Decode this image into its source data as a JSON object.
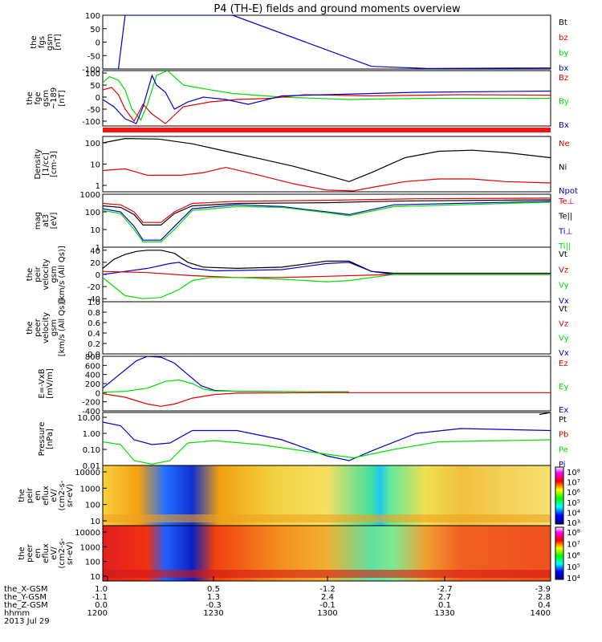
{
  "title": "P4 (TH-E) fields and ground moments overview",
  "colors": {
    "black": "#000000",
    "red": "#e00000",
    "green": "#00dd00",
    "blue": "#0000cc",
    "bar_red": "#ff1010",
    "ion_bg": "#f3e070"
  },
  "chart_data": [
    {
      "type": "line",
      "panel": "fgs",
      "ylabel_lines": [
        "the",
        "fgs",
        "gsm",
        "[nT]"
      ],
      "yticks": [
        "100",
        "50",
        "0",
        "-50",
        "-100"
      ],
      "ylim": [
        -100,
        100
      ],
      "legend": [
        {
          "name": "Bt",
          "color": "black"
        },
        {
          "name": "bz",
          "color": "red"
        },
        {
          "name": "by",
          "color": "green"
        },
        {
          "name": "bx",
          "color": "blue"
        }
      ],
      "series": [
        {
          "name": "bx",
          "color": "blue",
          "x": [
            1200,
            1207,
            1210,
            1258,
            1320,
            1345,
            1400
          ],
          "y": [
            -100,
            -100,
            100,
            100,
            -90,
            -98,
            -96
          ]
        }
      ]
    },
    {
      "type": "line",
      "panel": "fgs-189",
      "ylabel_lines": [
        "the",
        "fge",
        "gsm",
        "~189",
        "[nT]"
      ],
      "yticks": [
        "100",
        "50",
        "0",
        "-50",
        "-100"
      ],
      "ylim": [
        -120,
        110
      ],
      "legend": [
        {
          "name": "Bz",
          "color": "red"
        },
        {
          "name": "By",
          "color": "green"
        },
        {
          "name": "Bx",
          "color": "blue"
        }
      ],
      "series": [
        {
          "name": "By",
          "color": "green",
          "x": [
            1200,
            1203,
            1207,
            1210,
            1213,
            1217,
            1220,
            1224,
            1229,
            1236,
            1245,
            1258,
            1280,
            1310,
            1345,
            1400
          ],
          "y": [
            60,
            85,
            70,
            30,
            -50,
            -95,
            -30,
            90,
            110,
            50,
            35,
            15,
            0,
            -10,
            -5,
            -5
          ]
        },
        {
          "name": "Bz",
          "color": "red",
          "x": [
            1200,
            1204,
            1207,
            1210,
            1214,
            1218,
            1222,
            1228,
            1236,
            1248,
            1260,
            1275,
            1290,
            1320,
            1360,
            1400
          ],
          "y": [
            30,
            40,
            10,
            -50,
            -100,
            -30,
            -70,
            -110,
            -40,
            -20,
            -10,
            -5,
            10,
            5,
            10,
            8
          ]
        },
        {
          "name": "Bx",
          "color": "blue",
          "x": [
            1200,
            1205,
            1210,
            1215,
            1218,
            1222,
            1224,
            1228,
            1232,
            1238,
            1245,
            1255,
            1265,
            1280,
            1300,
            1340,
            1400
          ],
          "y": [
            -10,
            -40,
            -90,
            -110,
            -40,
            90,
            50,
            20,
            -50,
            -20,
            0,
            -10,
            -30,
            5,
            10,
            20,
            25
          ]
        }
      ]
    },
    {
      "type": "line",
      "panel": "density",
      "ylabel_lines": [
        "Density",
        "[1/cc]",
        "[cm-3]"
      ],
      "yticks": [
        "100",
        "10",
        "1"
      ],
      "scale": "log",
      "ylim": [
        0.5,
        200
      ],
      "legend": [
        {
          "name": "Ne",
          "color": "red"
        },
        {
          "name": "Ni",
          "color": "black"
        },
        {
          "name": "Npot",
          "color": "blue"
        }
      ],
      "series": [
        {
          "name": "Ni",
          "color": "black",
          "x": [
            1200,
            1210,
            1225,
            1240,
            1255,
            1270,
            1285,
            1300,
            1310,
            1320,
            1335,
            1350,
            1365,
            1380,
            1400
          ],
          "y": [
            100,
            160,
            150,
            90,
            40,
            18,
            8,
            3,
            1.5,
            4,
            20,
            40,
            45,
            35,
            20
          ]
        },
        {
          "name": "Ne",
          "color": "red",
          "x": [
            1200,
            1210,
            1220,
            1235,
            1245,
            1255,
            1270,
            1285,
            1300,
            1312,
            1320,
            1335,
            1350,
            1365,
            1380,
            1400
          ],
          "y": [
            5,
            6,
            3,
            3,
            4,
            7,
            3,
            1.2,
            0.6,
            0.55,
            0.8,
            1.5,
            2,
            2,
            1.5,
            1.3
          ]
        }
      ]
    },
    {
      "type": "line",
      "panel": "magat3",
      "ylabel_lines": [
        "mag",
        "at3",
        "[eV]"
      ],
      "yticks": [
        "1000",
        "100",
        "10",
        "1"
      ],
      "scale": "log",
      "ylim": [
        1,
        1000
      ],
      "legend": [
        {
          "name": "Te⊥",
          "color": "red"
        },
        {
          "name": "Te||",
          "color": "black"
        },
        {
          "name": "Ti⊥",
          "color": "blue"
        },
        {
          "name": "Ti||",
          "color": "green"
        }
      ],
      "series": [
        {
          "name": "Te⊥",
          "color": "red",
          "x": [
            1200,
            1208,
            1214,
            1218,
            1226,
            1232,
            1240,
            1260,
            1300,
            1320,
            1340,
            1400
          ],
          "y": [
            300,
            250,
            100,
            25,
            25,
            100,
            300,
            400,
            450,
            500,
            550,
            600
          ]
        },
        {
          "name": "Te||",
          "color": "black",
          "x": [
            1200,
            1208,
            1214,
            1218,
            1226,
            1232,
            1240,
            1260,
            1300,
            1320,
            1340,
            1400
          ],
          "y": [
            220,
            180,
            70,
            18,
            18,
            80,
            220,
            300,
            330,
            380,
            420,
            480
          ]
        },
        {
          "name": "Ti⊥",
          "color": "blue",
          "x": [
            1200,
            1208,
            1214,
            1218,
            1226,
            1232,
            1240,
            1260,
            1280,
            1300,
            1310,
            1330,
            1400
          ],
          "y": [
            150,
            100,
            15,
            2.5,
            2.5,
            15,
            150,
            250,
            200,
            100,
            70,
            250,
            400
          ]
        },
        {
          "name": "Ti||",
          "color": "green",
          "x": [
            1200,
            1208,
            1214,
            1218,
            1226,
            1232,
            1240,
            1260,
            1280,
            1300,
            1310,
            1330,
            1400
          ],
          "y": [
            120,
            80,
            10,
            2,
            2,
            10,
            120,
            200,
            180,
            90,
            60,
            200,
            350
          ]
        }
      ]
    },
    {
      "type": "line",
      "panel": "velocity",
      "ylabel_lines": [
        "the",
        "peir",
        "velocity",
        "gsm",
        "[km/s (All Qs)]"
      ],
      "yticks": [
        "40",
        "20",
        "0",
        "-20",
        "-40"
      ],
      "ylim": [
        -45,
        45
      ],
      "legend": [
        {
          "name": "Vt",
          "color": "black"
        },
        {
          "name": "Vz",
          "color": "red"
        },
        {
          "name": "Vy",
          "color": "green"
        },
        {
          "name": "Vx",
          "color": "blue"
        }
      ],
      "series": [
        {
          "name": "Vt",
          "color": "black",
          "x": [
            1200,
            1205,
            1210,
            1215,
            1220,
            1226,
            1232,
            1238,
            1245,
            1260,
            1280,
            1300,
            1310,
            1320,
            1330,
            1400
          ],
          "y": [
            10,
            25,
            33,
            38,
            40,
            40,
            35,
            20,
            12,
            10,
            12,
            22,
            22,
            5,
            2,
            2
          ]
        },
        {
          "name": "Vx",
          "color": "blue",
          "x": [
            1200,
            1210,
            1220,
            1230,
            1234,
            1240,
            1250,
            1280,
            1300,
            1310,
            1320,
            1330,
            1400
          ],
          "y": [
            0,
            5,
            10,
            18,
            20,
            10,
            6,
            8,
            18,
            20,
            5,
            0,
            0
          ]
        },
        {
          "name": "Vz",
          "color": "red",
          "x": [
            1200,
            1220,
            1240,
            1260,
            1280,
            1300,
            1330,
            1400
          ],
          "y": [
            5,
            3,
            -2,
            -5,
            -5,
            -3,
            0,
            0
          ]
        },
        {
          "name": "Vy",
          "color": "green",
          "x": [
            1200,
            1205,
            1210,
            1218,
            1226,
            1234,
            1240,
            1248,
            1260,
            1280,
            1300,
            1310,
            1320,
            1330,
            1400
          ],
          "y": [
            -5,
            -20,
            -35,
            -40,
            -38,
            -25,
            -10,
            -5,
            -5,
            -8,
            -12,
            -10,
            -5,
            0,
            0
          ]
        }
      ]
    },
    {
      "type": "line",
      "panel": "peer-velocity",
      "ylabel_lines": [
        "the",
        "peer",
        "velocity",
        "gsm",
        "[km/s (All Qs)]"
      ],
      "yticks": [
        "1.0",
        "0.8",
        "0.6",
        "0.4",
        "0.2",
        "0.0"
      ],
      "ylim": [
        0,
        1
      ],
      "legend": [
        {
          "name": "Vt",
          "color": "black"
        },
        {
          "name": "Vz",
          "color": "red"
        },
        {
          "name": "Vy",
          "color": "green"
        },
        {
          "name": "Vx",
          "color": "blue"
        }
      ],
      "series": []
    },
    {
      "type": "line",
      "panel": "efield",
      "ylabel_lines": [
        "E=-VxB",
        "[mV/m]"
      ],
      "yticks": [
        "800",
        "600",
        "400",
        "200",
        "0",
        "-200",
        "-400"
      ],
      "ylim": [
        -400,
        800
      ],
      "legend": [
        {
          "name": "Ez",
          "color": "red"
        },
        {
          "name": "Ey",
          "color": "green"
        },
        {
          "name": "Ex",
          "color": "blue"
        }
      ],
      "series": [
        {
          "name": "Ex",
          "color": "blue",
          "x": [
            1200,
            1205,
            1210,
            1215,
            1220,
            1226,
            1232,
            1238,
            1244,
            1250,
            1260,
            1300,
            1310
          ],
          "y": [
            100,
            300,
            500,
            700,
            800,
            780,
            650,
            400,
            150,
            50,
            30,
            20,
            20
          ]
        },
        {
          "name": "Ey",
          "color": "green",
          "x": [
            1200,
            1210,
            1220,
            1228,
            1234,
            1240,
            1245,
            1250,
            1260,
            1300,
            1310
          ],
          "y": [
            10,
            30,
            100,
            250,
            280,
            200,
            80,
            40,
            30,
            20,
            20
          ]
        },
        {
          "name": "Ez",
          "color": "red",
          "x": [
            1200,
            1210,
            1220,
            1226,
            1232,
            1240,
            1250,
            1260,
            1300,
            1400
          ],
          "y": [
            -20,
            -100,
            -250,
            -300,
            -250,
            -120,
            -40,
            -10,
            0,
            0
          ]
        }
      ]
    },
    {
      "type": "line",
      "panel": "pressure",
      "ylabel_lines": [
        "Pressure",
        "[nPa]"
      ],
      "yticks": [
        "10.00",
        "1.00",
        "0.10",
        "0.01"
      ],
      "scale": "log",
      "ylim": [
        0.01,
        20
      ],
      "legend": [
        {
          "name": "Pt",
          "color": "black"
        },
        {
          "name": "Pb",
          "color": "red"
        },
        {
          "name": "Pe",
          "color": "green"
        },
        {
          "name": "Pi",
          "color": "blue"
        }
      ],
      "series": [
        {
          "name": "Pi",
          "color": "blue",
          "x": [
            1200,
            1208,
            1214,
            1222,
            1230,
            1240,
            1260,
            1280,
            1300,
            1310,
            1320,
            1340,
            1360,
            1400
          ],
          "y": [
            5,
            3,
            0.4,
            0.2,
            0.25,
            1.5,
            1.5,
            0.4,
            0.04,
            0.02,
            0.08,
            1.0,
            2.0,
            1.5
          ]
        },
        {
          "name": "Pe",
          "color": "green",
          "x": [
            1200,
            1208,
            1214,
            1222,
            1230,
            1238,
            1250,
            1270,
            1300,
            1312,
            1330,
            1350,
            1400
          ],
          "y": [
            0.3,
            0.2,
            0.02,
            0.012,
            0.02,
            0.25,
            0.35,
            0.2,
            0.05,
            0.03,
            0.1,
            0.3,
            0.4
          ]
        },
        {
          "name": "Pt",
          "color": "black",
          "x": [
            1395,
            1400
          ],
          "y": [
            15,
            20
          ]
        }
      ]
    },
    {
      "type": "heatmap",
      "panel": "ion-spectrogram",
      "ylabel_lines": [
        "the",
        "peir",
        "en",
        "eflux",
        "eV/",
        "(cm2-s-",
        "sr-eV)"
      ],
      "yticks": [
        "10000",
        "1000",
        "100",
        "10"
      ],
      "scale": "log",
      "colorbar_ticks": [
        "10⁸",
        "10⁷",
        "10⁶",
        "10⁵",
        "10⁴",
        "10³"
      ]
    },
    {
      "type": "heatmap",
      "panel": "electron-spectrogram",
      "ylabel_lines": [
        "the",
        "peer",
        "en",
        "eflux",
        "eV/",
        "(cm2-s-",
        "sr-eV)"
      ],
      "yticks": [
        "10000",
        "1000",
        "100",
        "10"
      ],
      "scale": "log",
      "colorbar_ticks": [
        "10⁸",
        "10⁷",
        "10⁶",
        "10⁵",
        "10⁴"
      ]
    }
  ],
  "xaxis": {
    "xlim": [
      1200,
      1400
    ],
    "rows": [
      {
        "label": "the_X-GSM",
        "values": [
          "1.0",
          "0.5",
          "-1.2",
          "-2.7",
          "-3.9"
        ]
      },
      {
        "label": "the_Y-GSM",
        "values": [
          "-1.1",
          "1.3",
          "2.4",
          "2.7",
          "2.8"
        ]
      },
      {
        "label": "the_Z-GSM",
        "values": [
          "0.0",
          "-0.3",
          "-0.1",
          "0.1",
          "0.4"
        ]
      },
      {
        "label": "hhmm",
        "values": [
          "1200",
          "1230",
          "1300",
          "1330",
          "1400"
        ]
      }
    ],
    "date": "2013 Jul 29"
  }
}
